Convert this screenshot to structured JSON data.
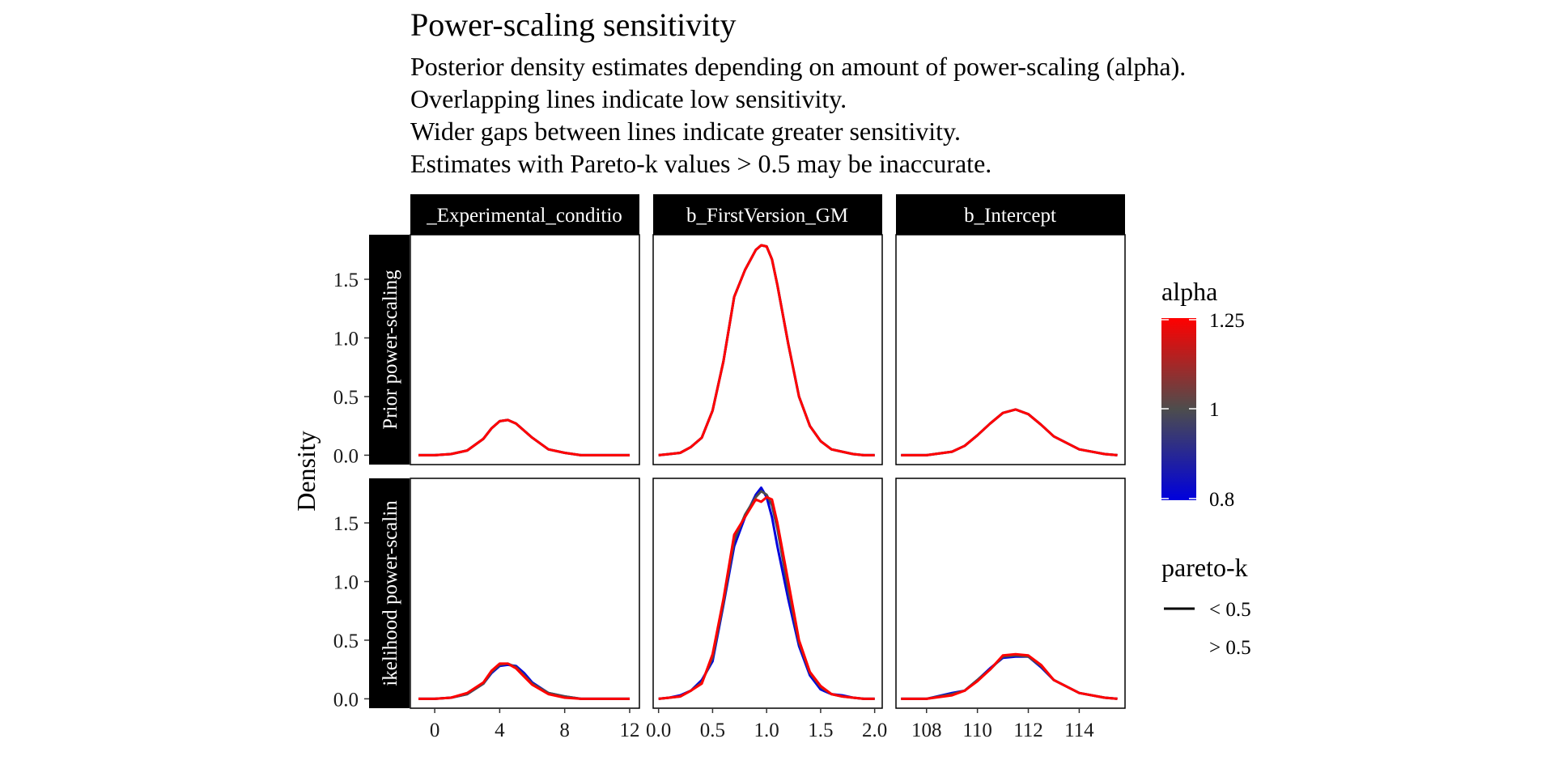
{
  "title": "Power-scaling sensitivity",
  "subtitle_lines": [
    "Posterior density estimates depending on amount of power-scaling (alpha).",
    "Overlapping lines indicate low sensitivity.",
    "Wider gaps between lines indicate greater sensitivity.",
    "Estimates with Pareto-k values > 0.5 may be inaccurate."
  ],
  "chart_data": {
    "type": "line",
    "title": "Power-scaling sensitivity",
    "ylabel": "Density",
    "xlabel": "",
    "grid": false,
    "legend_position": "right",
    "columns": [
      {
        "label": "b_Experimental_condition",
        "visible_label": "_Experimental_conditio",
        "xlim": [
          -1.5,
          12.6
        ],
        "xticks": [
          0,
          4,
          8,
          12
        ],
        "xtick_labels": [
          "0",
          "4",
          "8",
          "12"
        ]
      },
      {
        "label": "b_FirstVersion_GM",
        "xlim": [
          -0.05,
          2.07
        ],
        "xticks": [
          0.0,
          0.5,
          1.0,
          1.5,
          2.0
        ],
        "xtick_labels": [
          "0.0",
          "0.5",
          "1.0",
          "1.5",
          "2.0"
        ]
      },
      {
        "label": "b_Intercept",
        "xlim": [
          106.8,
          115.8
        ],
        "xticks": [
          108,
          110,
          112,
          114
        ],
        "xtick_labels": [
          "108",
          "110",
          "112",
          "114"
        ]
      }
    ],
    "rows": [
      {
        "label": "Prior power-scaling",
        "visible_label": "Prior power-scaling"
      },
      {
        "label": "Likelihood power-scaling",
        "visible_label": "ikelihood power-scalin"
      }
    ],
    "ylim": [
      -0.08,
      1.88
    ],
    "yticks": [
      0.0,
      0.5,
      1.0,
      1.5
    ],
    "ytick_labels": [
      "0.0",
      "0.5",
      "1.0",
      "1.5"
    ],
    "series_note": "one density line per alpha value; color encodes alpha",
    "alpha_values": [
      0.8,
      1.0,
      1.25
    ],
    "colors": {
      "0.8": "#0000dd",
      "1": "#4d4d4d",
      "1.25": "#ff0000"
    },
    "panels": [
      {
        "row": 0,
        "col": 0,
        "series": [
          {
            "alpha": 0.8,
            "x": [
              -1,
              0,
              1,
              2,
              3,
              3.5,
              4,
              4.5,
              5,
              6,
              7,
              8,
              9,
              10,
              11,
              12
            ],
            "y": [
              0.0,
              0.0,
              0.01,
              0.04,
              0.14,
              0.23,
              0.29,
              0.3,
              0.27,
              0.15,
              0.05,
              0.02,
              0.0,
              0.0,
              0.0,
              0.0
            ]
          },
          {
            "alpha": 1.0,
            "x": [
              -1,
              0,
              1,
              2,
              3,
              3.5,
              4,
              4.5,
              5,
              6,
              7,
              8,
              9,
              10,
              11,
              12
            ],
            "y": [
              0.0,
              0.0,
              0.01,
              0.04,
              0.14,
              0.23,
              0.29,
              0.3,
              0.27,
              0.15,
              0.05,
              0.02,
              0.0,
              0.0,
              0.0,
              0.0
            ]
          },
          {
            "alpha": 1.25,
            "x": [
              -1,
              0,
              1,
              2,
              3,
              3.5,
              4,
              4.5,
              5,
              6,
              7,
              8,
              9,
              10,
              11,
              12
            ],
            "y": [
              0.0,
              0.0,
              0.01,
              0.04,
              0.14,
              0.23,
              0.29,
              0.3,
              0.27,
              0.15,
              0.05,
              0.02,
              0.0,
              0.0,
              0.0,
              0.0
            ]
          }
        ]
      },
      {
        "row": 0,
        "col": 1,
        "series": [
          {
            "alpha": 0.8,
            "x": [
              0.0,
              0.1,
              0.2,
              0.3,
              0.4,
              0.5,
              0.6,
              0.7,
              0.8,
              0.9,
              0.95,
              1.0,
              1.05,
              1.1,
              1.2,
              1.3,
              1.4,
              1.5,
              1.6,
              1.7,
              1.8,
              1.9,
              2.0
            ],
            "y": [
              0.0,
              0.01,
              0.02,
              0.07,
              0.15,
              0.38,
              0.8,
              1.35,
              1.58,
              1.75,
              1.79,
              1.78,
              1.67,
              1.45,
              0.95,
              0.5,
              0.25,
              0.12,
              0.05,
              0.03,
              0.01,
              0.0,
              0.0
            ]
          },
          {
            "alpha": 1.0,
            "x": [
              0.0,
              0.1,
              0.2,
              0.3,
              0.4,
              0.5,
              0.6,
              0.7,
              0.8,
              0.9,
              0.95,
              1.0,
              1.05,
              1.1,
              1.2,
              1.3,
              1.4,
              1.5,
              1.6,
              1.7,
              1.8,
              1.9,
              2.0
            ],
            "y": [
              0.0,
              0.01,
              0.02,
              0.07,
              0.15,
              0.38,
              0.8,
              1.35,
              1.58,
              1.75,
              1.79,
              1.78,
              1.67,
              1.45,
              0.95,
              0.5,
              0.25,
              0.12,
              0.05,
              0.03,
              0.01,
              0.0,
              0.0
            ]
          },
          {
            "alpha": 1.25,
            "x": [
              0.0,
              0.1,
              0.2,
              0.3,
              0.4,
              0.5,
              0.6,
              0.7,
              0.8,
              0.9,
              0.95,
              1.0,
              1.05,
              1.1,
              1.2,
              1.3,
              1.4,
              1.5,
              1.6,
              1.7,
              1.8,
              1.9,
              2.0
            ],
            "y": [
              0.0,
              0.01,
              0.02,
              0.07,
              0.15,
              0.38,
              0.8,
              1.35,
              1.58,
              1.75,
              1.79,
              1.78,
              1.67,
              1.45,
              0.95,
              0.5,
              0.25,
              0.12,
              0.05,
              0.03,
              0.01,
              0.0,
              0.0
            ]
          }
        ]
      },
      {
        "row": 0,
        "col": 2,
        "series": [
          {
            "alpha": 0.8,
            "x": [
              107,
              108,
              109,
              109.5,
              110,
              110.5,
              111,
              111.5,
              112,
              112.5,
              113,
              114,
              115,
              115.5
            ],
            "y": [
              0.0,
              0.0,
              0.03,
              0.08,
              0.17,
              0.27,
              0.36,
              0.39,
              0.35,
              0.26,
              0.16,
              0.05,
              0.01,
              0.0
            ]
          },
          {
            "alpha": 1.0,
            "x": [
              107,
              108,
              109,
              109.5,
              110,
              110.5,
              111,
              111.5,
              112,
              112.5,
              113,
              114,
              115,
              115.5
            ],
            "y": [
              0.0,
              0.0,
              0.03,
              0.08,
              0.17,
              0.27,
              0.36,
              0.39,
              0.35,
              0.26,
              0.16,
              0.05,
              0.01,
              0.0
            ]
          },
          {
            "alpha": 1.25,
            "x": [
              107,
              108,
              109,
              109.5,
              110,
              110.5,
              111,
              111.5,
              112,
              112.5,
              113,
              114,
              115,
              115.5
            ],
            "y": [
              0.0,
              0.0,
              0.03,
              0.08,
              0.17,
              0.27,
              0.36,
              0.39,
              0.35,
              0.26,
              0.16,
              0.05,
              0.01,
              0.0
            ]
          }
        ]
      },
      {
        "row": 1,
        "col": 0,
        "series": [
          {
            "alpha": 0.8,
            "x": [
              -1,
              0,
              1,
              2,
              3,
              3.5,
              4,
              4.5,
              5,
              5.5,
              6,
              7,
              8,
              9,
              10,
              11,
              12
            ],
            "y": [
              0.0,
              0.0,
              0.01,
              0.04,
              0.13,
              0.22,
              0.28,
              0.29,
              0.28,
              0.22,
              0.14,
              0.05,
              0.02,
              0.0,
              0.0,
              0.0,
              0.0
            ]
          },
          {
            "alpha": 1.0,
            "x": [
              -1,
              0,
              1,
              2,
              3,
              3.5,
              4,
              4.5,
              5,
              5.5,
              6,
              7,
              8,
              9,
              10,
              11,
              12
            ],
            "y": [
              0.0,
              0.0,
              0.01,
              0.04,
              0.13,
              0.23,
              0.29,
              0.3,
              0.27,
              0.2,
              0.13,
              0.05,
              0.02,
              0.0,
              0.0,
              0.0,
              0.0
            ]
          },
          {
            "alpha": 1.25,
            "x": [
              -1,
              0,
              1,
              2,
              3,
              3.5,
              4,
              4.5,
              5,
              5.5,
              6,
              7,
              8,
              9,
              10,
              11,
              12
            ],
            "y": [
              0.0,
              0.0,
              0.01,
              0.05,
              0.14,
              0.24,
              0.3,
              0.3,
              0.26,
              0.19,
              0.12,
              0.04,
              0.01,
              0.0,
              0.0,
              0.0,
              0.0
            ]
          }
        ]
      },
      {
        "row": 1,
        "col": 1,
        "series": [
          {
            "alpha": 0.8,
            "x": [
              0.0,
              0.1,
              0.2,
              0.3,
              0.4,
              0.5,
              0.6,
              0.7,
              0.8,
              0.9,
              0.95,
              1.0,
              1.05,
              1.1,
              1.2,
              1.3,
              1.4,
              1.5,
              1.6,
              1.7,
              1.8,
              1.9,
              2.0
            ],
            "y": [
              0.0,
              0.01,
              0.03,
              0.07,
              0.16,
              0.32,
              0.8,
              1.3,
              1.55,
              1.74,
              1.8,
              1.72,
              1.55,
              1.3,
              0.85,
              0.45,
              0.2,
              0.08,
              0.04,
              0.03,
              0.01,
              0.0,
              0.0
            ]
          },
          {
            "alpha": 1.0,
            "x": [
              0.0,
              0.1,
              0.2,
              0.3,
              0.4,
              0.5,
              0.6,
              0.7,
              0.8,
              0.9,
              0.95,
              1.0,
              1.05,
              1.1,
              1.2,
              1.3,
              1.4,
              1.5,
              1.6,
              1.7,
              1.8,
              1.9,
              2.0
            ],
            "y": [
              0.0,
              0.01,
              0.02,
              0.07,
              0.14,
              0.35,
              0.82,
              1.35,
              1.57,
              1.72,
              1.77,
              1.74,
              1.65,
              1.45,
              0.93,
              0.48,
              0.22,
              0.1,
              0.04,
              0.02,
              0.01,
              0.0,
              0.0
            ]
          },
          {
            "alpha": 1.25,
            "x": [
              0.0,
              0.1,
              0.2,
              0.3,
              0.4,
              0.5,
              0.6,
              0.7,
              0.8,
              0.9,
              0.95,
              1.0,
              1.05,
              1.1,
              1.2,
              1.3,
              1.4,
              1.5,
              1.6,
              1.7,
              1.8,
              1.9,
              2.0
            ],
            "y": [
              0.0,
              0.01,
              0.02,
              0.07,
              0.13,
              0.38,
              0.85,
              1.4,
              1.55,
              1.7,
              1.68,
              1.72,
              1.7,
              1.5,
              1.0,
              0.5,
              0.23,
              0.11,
              0.04,
              0.02,
              0.01,
              0.0,
              0.0
            ]
          }
        ]
      },
      {
        "row": 1,
        "col": 2,
        "series": [
          {
            "alpha": 0.8,
            "x": [
              107,
              108,
              109,
              109.5,
              110,
              110.5,
              111,
              111.5,
              112,
              112.5,
              113,
              114,
              115,
              115.5
            ],
            "y": [
              0.0,
              0.0,
              0.05,
              0.07,
              0.16,
              0.26,
              0.35,
              0.36,
              0.36,
              0.27,
              0.16,
              0.05,
              0.01,
              0.0
            ]
          },
          {
            "alpha": 1.0,
            "x": [
              107,
              108,
              109,
              109.5,
              110,
              110.5,
              111,
              111.5,
              112,
              112.5,
              113,
              114,
              115,
              115.5
            ],
            "y": [
              0.0,
              0.0,
              0.04,
              0.07,
              0.16,
              0.25,
              0.36,
              0.37,
              0.36,
              0.28,
              0.16,
              0.05,
              0.01,
              0.0
            ]
          },
          {
            "alpha": 1.25,
            "x": [
              107,
              108,
              109,
              109.5,
              110,
              110.5,
              111,
              111.5,
              112,
              112.5,
              113,
              114,
              115,
              115.5
            ],
            "y": [
              0.0,
              0.0,
              0.03,
              0.07,
              0.15,
              0.25,
              0.37,
              0.38,
              0.37,
              0.29,
              0.16,
              0.05,
              0.01,
              0.0
            ]
          }
        ]
      }
    ],
    "legend": {
      "color_title": "alpha",
      "color_ticks": [
        "1.25",
        "1",
        "0.8"
      ],
      "color_gradient": [
        "#ff0000",
        "#4d4d4d",
        "#0000dd"
      ],
      "linetype_title": "pareto-k",
      "linetype_entries": [
        {
          "label": "< 0.5",
          "linetype": "solid"
        },
        {
          "label": "> 0.5",
          "linetype": "blank"
        }
      ]
    }
  }
}
